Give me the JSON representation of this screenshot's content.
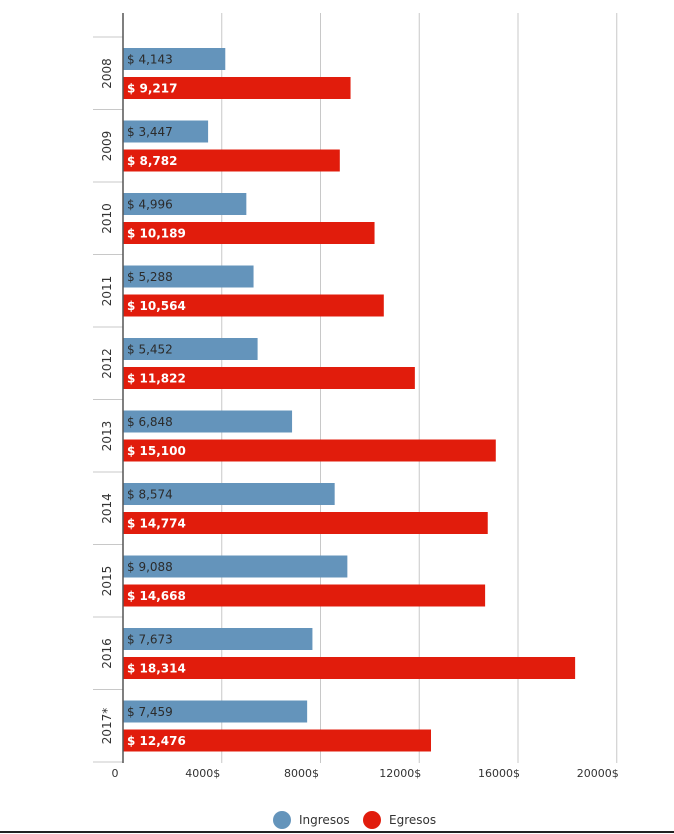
{
  "chart_data": {
    "type": "bar",
    "orientation": "horizontal",
    "categories": [
      "2008",
      "2009",
      "2010",
      "2011",
      "2012",
      "2013",
      "2014",
      "2015",
      "2016",
      "2017*"
    ],
    "series": [
      {
        "name": "Ingresos",
        "color": "#6494bb",
        "label_color": "#2b2b2b",
        "values": [
          4143,
          3447,
          4996,
          5288,
          5452,
          6848,
          8574,
          9088,
          7673,
          7459
        ],
        "labels": [
          "$ 4,143",
          "$ 3,447",
          "$ 4,996",
          "$ 5,288",
          "$ 5,452",
          "$ 6,848",
          "$ 8,574",
          "$ 9,088",
          "$ 7,673",
          "$ 7,459"
        ]
      },
      {
        "name": "Egresos",
        "color": "#e11c0c",
        "label_color": "#ffffff",
        "values": [
          9217,
          8782,
          10189,
          10564,
          11822,
          15100,
          14774,
          14668,
          18314,
          12476
        ],
        "labels": [
          "$ 9,217",
          "$ 8,782",
          "$ 10,189",
          "$ 10,564",
          "$ 11,822",
          "$ 15,100",
          "$ 14,774",
          "$ 14,668",
          "$ 18,314",
          "$ 12,476"
        ]
      }
    ],
    "xlim": [
      0,
      20000
    ],
    "x_ticks": [
      0,
      4000,
      8000,
      12000,
      16000,
      20000
    ],
    "x_tick_labels": [
      "0",
      "4000$",
      "8000$",
      "12000$",
      "16000$",
      "20000$"
    ],
    "grid": true,
    "legend_position": "bottom-center",
    "title": "",
    "xlabel": "",
    "ylabel": ""
  }
}
